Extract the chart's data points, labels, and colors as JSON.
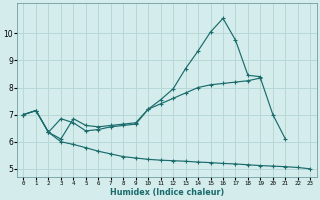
{
  "xlabel": "Humidex (Indice chaleur)",
  "bg_color": "#d4ecec",
  "grid_color": "#b8d8d8",
  "line_color": "#1a6b6b",
  "line1_x": [
    0,
    1,
    2,
    3,
    4,
    5,
    6,
    7,
    8,
    9,
    10,
    11,
    12,
    13,
    14,
    15,
    16,
    17,
    18,
    19
  ],
  "line1_y": [
    7.0,
    7.15,
    6.35,
    6.1,
    6.85,
    6.6,
    6.55,
    6.6,
    6.65,
    6.7,
    7.2,
    7.55,
    7.95,
    8.7,
    9.35,
    10.05,
    10.55,
    9.75,
    8.45,
    8.4
  ],
  "line2_x": [
    0,
    1,
    2,
    3,
    4,
    5,
    6,
    7,
    8,
    9,
    10,
    11,
    12,
    13,
    14,
    15,
    16,
    17,
    18,
    19,
    20,
    21
  ],
  "line2_y": [
    7.0,
    7.15,
    6.35,
    6.85,
    6.7,
    6.4,
    6.45,
    6.55,
    6.6,
    6.65,
    7.2,
    7.4,
    7.6,
    7.8,
    8.0,
    8.1,
    8.15,
    8.2,
    8.25,
    8.35,
    7.0,
    6.1
  ],
  "line3_x": [
    0,
    1,
    2,
    3,
    4,
    5,
    6,
    7,
    8,
    9,
    10,
    11,
    12,
    13,
    14,
    15,
    16,
    17,
    18,
    19,
    20,
    21,
    22,
    23
  ],
  "line3_y": [
    7.0,
    7.15,
    6.35,
    6.0,
    5.9,
    5.78,
    5.65,
    5.55,
    5.45,
    5.4,
    5.35,
    5.32,
    5.3,
    5.28,
    5.25,
    5.23,
    5.2,
    5.18,
    5.15,
    5.12,
    5.1,
    5.08,
    5.05,
    5.0
  ],
  "xlim": [
    -0.5,
    23.5
  ],
  "ylim": [
    4.7,
    11.1
  ],
  "yticks": [
    5,
    6,
    7,
    8,
    9,
    10
  ],
  "xticks": [
    0,
    1,
    2,
    3,
    4,
    5,
    6,
    7,
    8,
    9,
    10,
    11,
    12,
    13,
    14,
    15,
    16,
    17,
    18,
    19,
    20,
    21,
    22,
    23
  ]
}
